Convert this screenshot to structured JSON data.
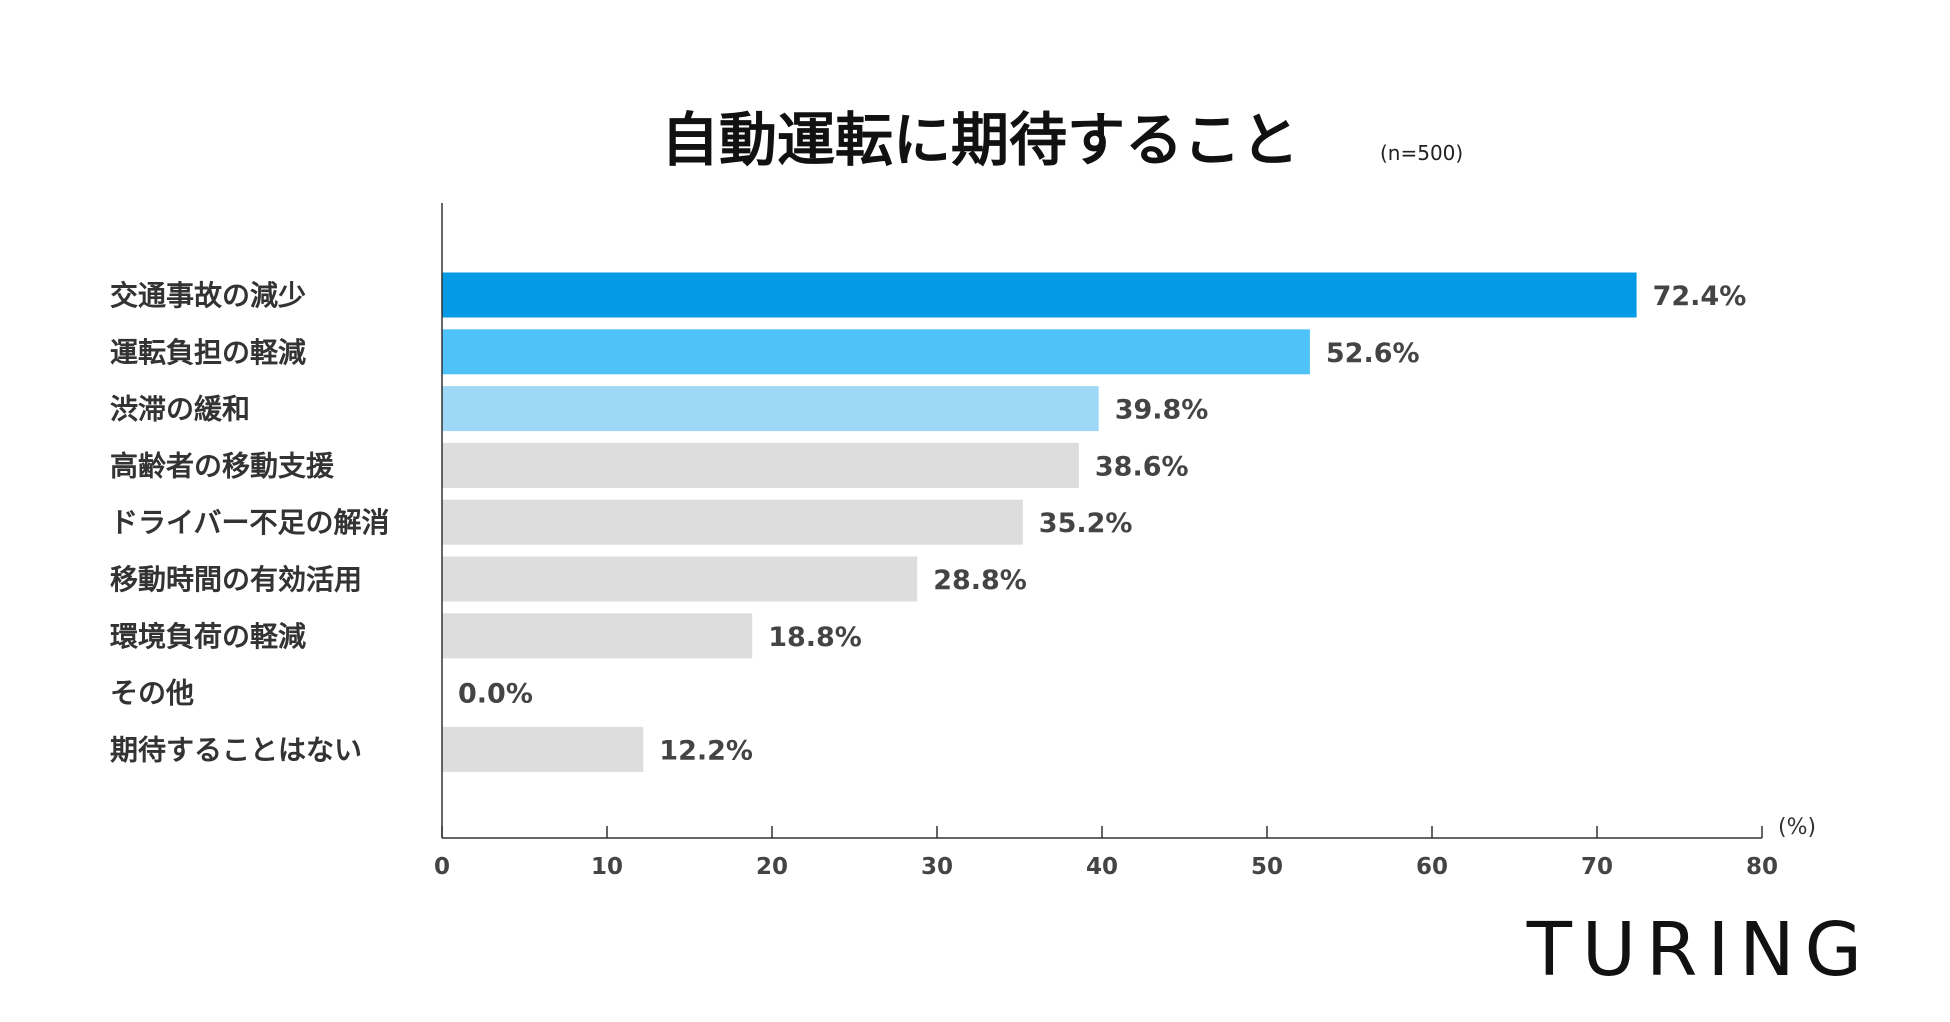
{
  "colors": {
    "primary": "#039be5",
    "secondary": "#4fc3f7",
    "tertiary": "#9ed8f7",
    "other": "#dcdddc",
    "axis": "#333333",
    "text": "#333333"
  },
  "chart_data": {
    "type": "bar",
    "orientation": "horizontal",
    "title": "自動運転に期待すること",
    "sample_size": "(n=500)",
    "unit": "(%)",
    "xlim": [
      0,
      80
    ],
    "ticks": [
      0,
      10,
      20,
      30,
      40,
      50,
      60,
      70,
      80
    ],
    "grid": false,
    "categories": [
      "交通事故の減少",
      "運転負担の軽減",
      "渋滞の緩和",
      "高齢者の移動支援",
      "ドライバー不足の解消",
      "移動時間の有効活用",
      "環境負荷の軽減",
      "その他",
      "期待することはない"
    ],
    "values": [
      72.4,
      52.6,
      39.8,
      38.6,
      35.2,
      28.8,
      18.8,
      0.0,
      12.2
    ],
    "value_labels": [
      "72.4%",
      "52.6%",
      "39.8%",
      "38.6%",
      "35.2%",
      "28.8%",
      "18.8%",
      "0.0%",
      "12.2%"
    ],
    "bar_colors": [
      "primary",
      "secondary",
      "tertiary",
      "other",
      "other",
      "other",
      "other",
      "other",
      "other"
    ]
  },
  "logo": {
    "text": "TURING"
  }
}
